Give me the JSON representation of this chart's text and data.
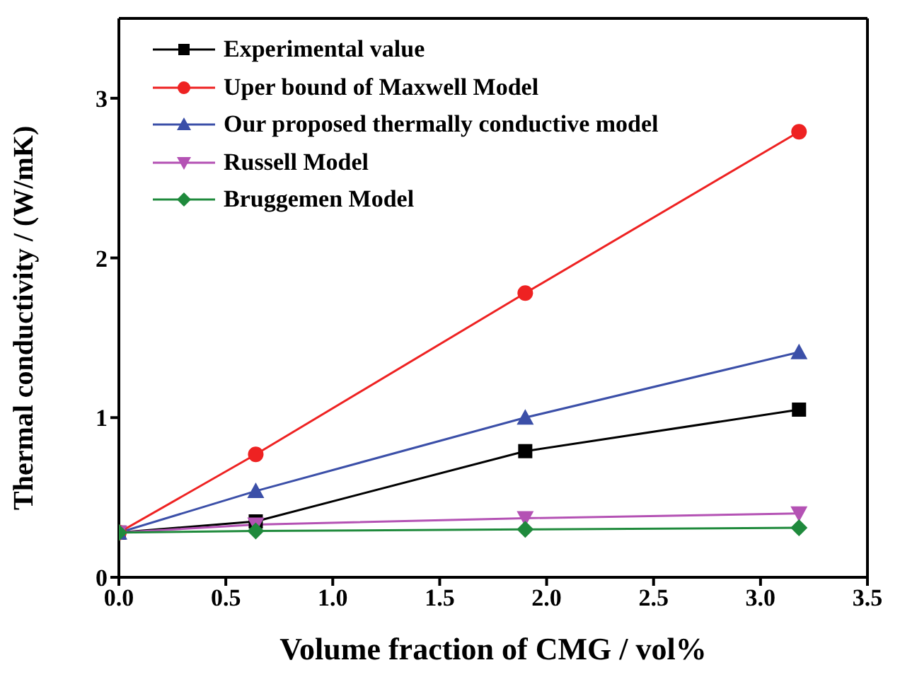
{
  "chart_data": {
    "type": "line",
    "xlabel": "Volume fraction of CMG / vol%",
    "ylabel": "Thermal conductivity / (W/mK)",
    "x": [
      0,
      0.64,
      1.9,
      3.18
    ],
    "series": [
      {
        "name": "Experimental value",
        "color": "#000000",
        "marker": "square",
        "values": [
          0.28,
          0.35,
          0.79,
          1.05
        ]
      },
      {
        "name": "Uper bound of Maxwell Model",
        "color": "#ee2222",
        "marker": "circle",
        "values": [
          0.28,
          0.77,
          1.78,
          2.79
        ]
      },
      {
        "name": "Our proposed thermally conductive model",
        "color": "#3b4fa8",
        "marker": "triangle",
        "values": [
          0.28,
          0.54,
          1.0,
          1.41
        ]
      },
      {
        "name": "Russell Model",
        "color": "#b452b4",
        "marker": "triangle-down",
        "values": [
          0.28,
          0.33,
          0.37,
          0.4
        ]
      },
      {
        "name": "Bruggemen Model",
        "color": "#1f8a3c",
        "marker": "diamond",
        "values": [
          0.28,
          0.29,
          0.3,
          0.31
        ]
      }
    ],
    "xlim": [
      0,
      3.5
    ],
    "xticks": [
      {
        "value": 0,
        "label": "0.0"
      },
      {
        "value": 0.5,
        "label": "0.5"
      },
      {
        "value": 1,
        "label": "1.0"
      },
      {
        "value": 1.5,
        "label": "1.5"
      },
      {
        "value": 2,
        "label": "2.0"
      },
      {
        "value": 2.5,
        "label": "2.5"
      },
      {
        "value": 3,
        "label": "3.0"
      },
      {
        "value": 3.5,
        "label": "3.5"
      }
    ],
    "ylim": [
      0,
      3.5
    ],
    "yticks": [
      0,
      1,
      2,
      3
    ],
    "grid": false,
    "legend": "top left",
    "line_style": "solid"
  }
}
